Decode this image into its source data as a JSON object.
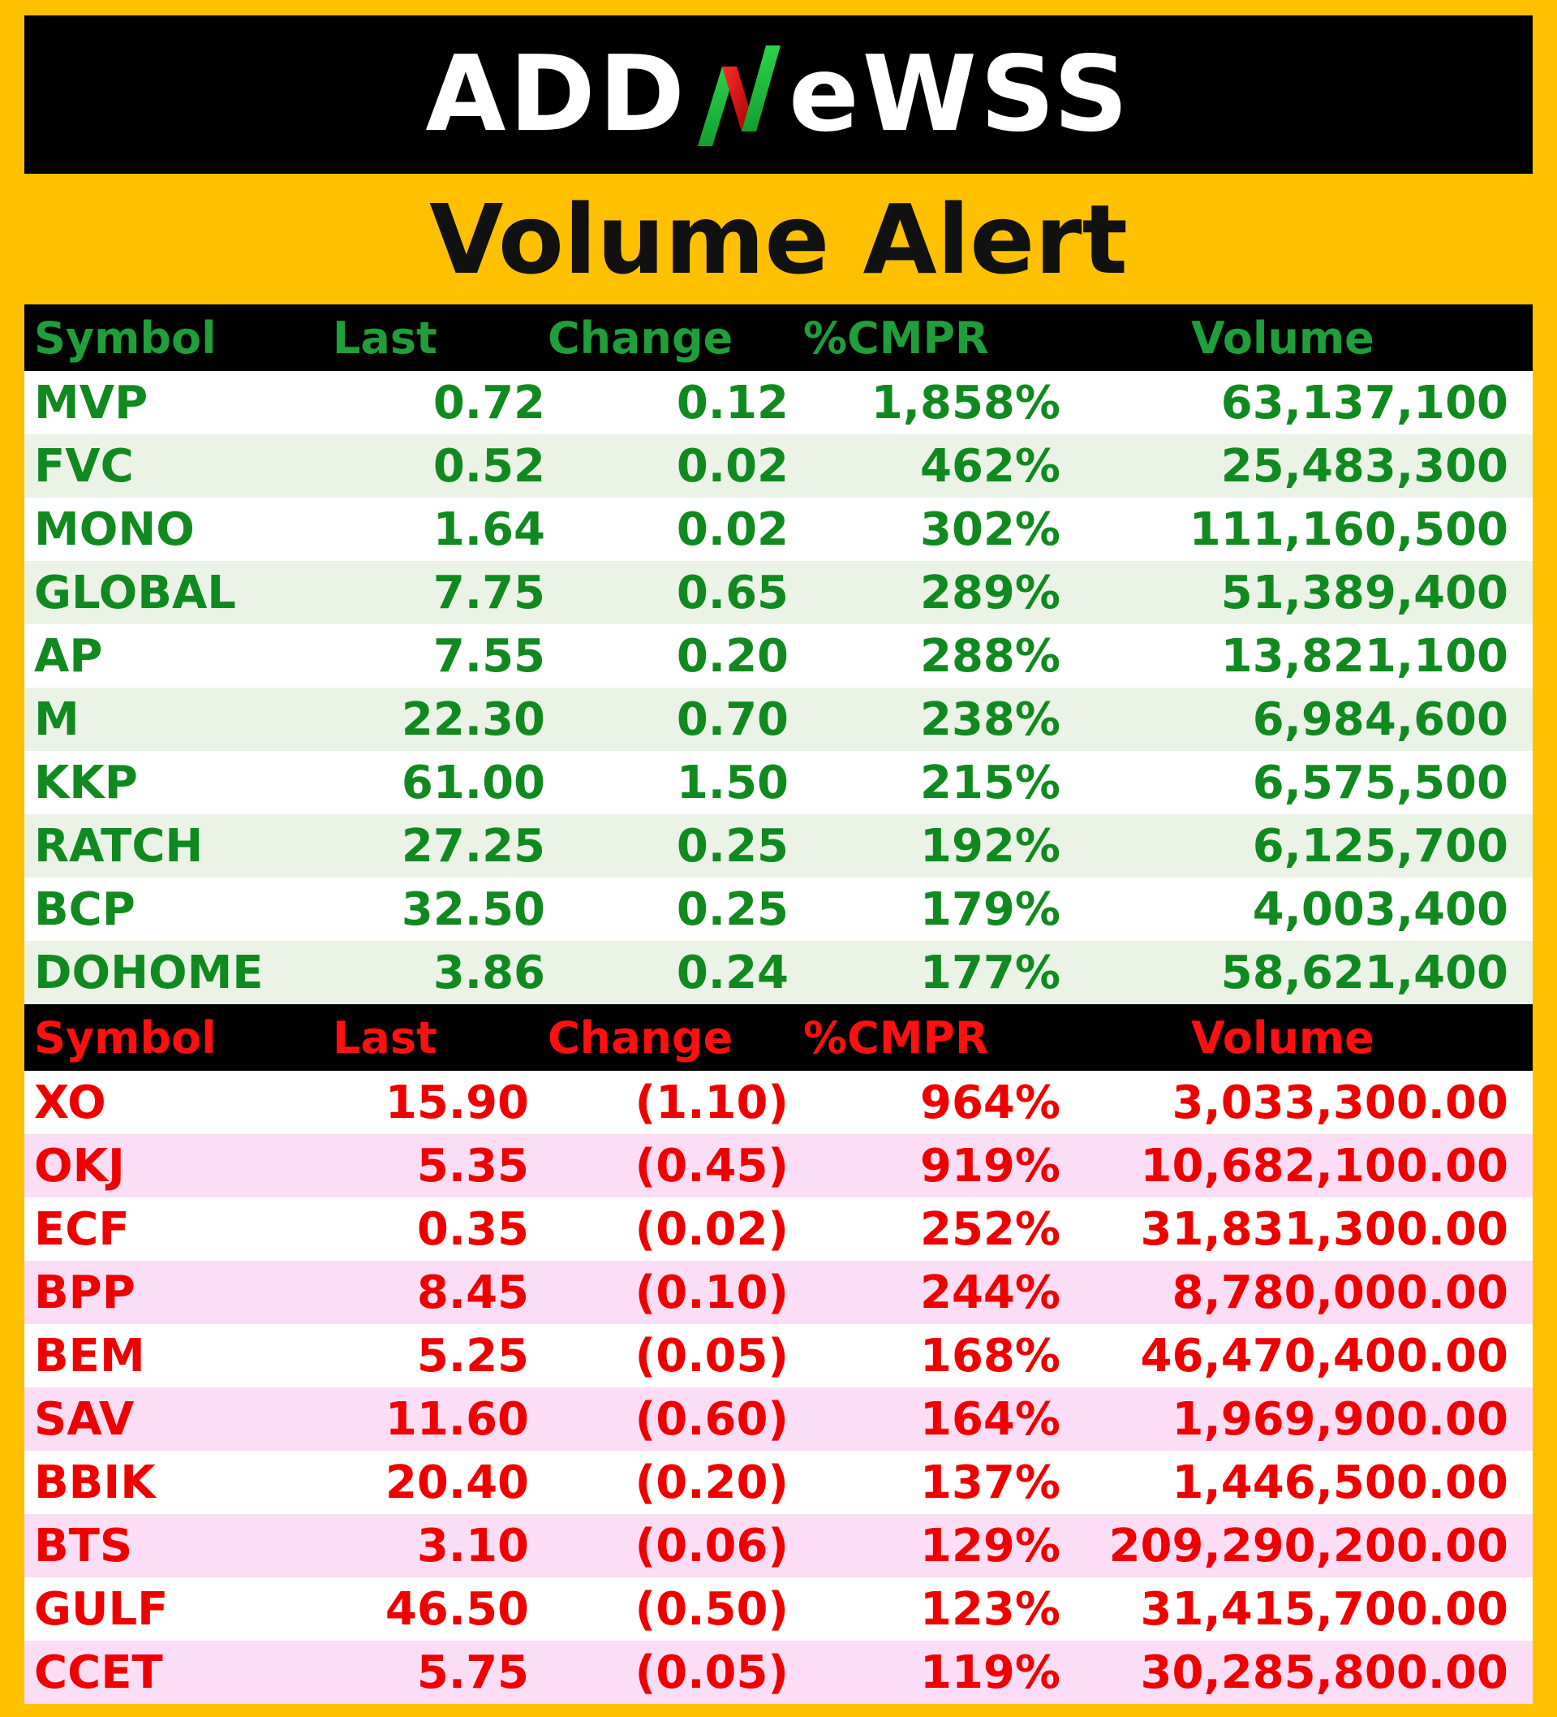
{
  "logo": {
    "prefix": "ADD",
    "n_letter": "N",
    "suffix": "eWSS",
    "text": "ADDNeWSS"
  },
  "title": "Volume Alert",
  "colors": {
    "background": "#FFC000",
    "header_bg": "#000000",
    "gain": "#108a1e",
    "loss": "#ee0000"
  },
  "gainers": {
    "headers": {
      "symbol": "Symbol",
      "last": "Last",
      "change": "Change",
      "cmpr": "%CMPR",
      "volume": "Volume"
    },
    "rows": [
      {
        "symbol": "MVP",
        "last": "0.72",
        "change": "0.12",
        "cmpr": "1,858%",
        "volume": "63,137,100"
      },
      {
        "symbol": "FVC",
        "last": "0.52",
        "change": "0.02",
        "cmpr": "462%",
        "volume": "25,483,300"
      },
      {
        "symbol": "MONO",
        "last": "1.64",
        "change": "0.02",
        "cmpr": "302%",
        "volume": "111,160,500"
      },
      {
        "symbol": "GLOBAL",
        "last": "7.75",
        "change": "0.65",
        "cmpr": "289%",
        "volume": "51,389,400"
      },
      {
        "symbol": "AP",
        "last": "7.55",
        "change": "0.20",
        "cmpr": "288%",
        "volume": "13,821,100"
      },
      {
        "symbol": "M",
        "last": "22.30",
        "change": "0.70",
        "cmpr": "238%",
        "volume": "6,984,600"
      },
      {
        "symbol": "KKP",
        "last": "61.00",
        "change": "1.50",
        "cmpr": "215%",
        "volume": "6,575,500"
      },
      {
        "symbol": "RATCH",
        "last": "27.25",
        "change": "0.25",
        "cmpr": "192%",
        "volume": "6,125,700"
      },
      {
        "symbol": "BCP",
        "last": "32.50",
        "change": "0.25",
        "cmpr": "179%",
        "volume": "4,003,400"
      },
      {
        "symbol": "DOHOME",
        "last": "3.86",
        "change": "0.24",
        "cmpr": "177%",
        "volume": "58,621,400"
      }
    ]
  },
  "losers": {
    "headers": {
      "symbol": "Symbol",
      "last": "Last",
      "change": "Change",
      "cmpr": "%CMPR",
      "volume": "Volume"
    },
    "rows": [
      {
        "symbol": "XO",
        "last": "15.90",
        "change": "(1.10)",
        "cmpr": "964%",
        "volume": "3,033,300.00"
      },
      {
        "symbol": "OKJ",
        "last": "5.35",
        "change": "(0.45)",
        "cmpr": "919%",
        "volume": "10,682,100.00"
      },
      {
        "symbol": "ECF",
        "last": "0.35",
        "change": "(0.02)",
        "cmpr": "252%",
        "volume": "31,831,300.00"
      },
      {
        "symbol": "BPP",
        "last": "8.45",
        "change": "(0.10)",
        "cmpr": "244%",
        "volume": "8,780,000.00"
      },
      {
        "symbol": "BEM",
        "last": "5.25",
        "change": "(0.05)",
        "cmpr": "168%",
        "volume": "46,470,400.00"
      },
      {
        "symbol": "SAV",
        "last": "11.60",
        "change": "(0.60)",
        "cmpr": "164%",
        "volume": "1,969,900.00"
      },
      {
        "symbol": "BBIK",
        "last": "20.40",
        "change": "(0.20)",
        "cmpr": "137%",
        "volume": "1,446,500.00"
      },
      {
        "symbol": "BTS",
        "last": "3.10",
        "change": "(0.06)",
        "cmpr": "129%",
        "volume": "209,290,200.00"
      },
      {
        "symbol": "GULF",
        "last": "46.50",
        "change": "(0.50)",
        "cmpr": "123%",
        "volume": "31,415,700.00"
      },
      {
        "symbol": "CCET",
        "last": "5.75",
        "change": "(0.05)",
        "cmpr": "119%",
        "volume": "30,285,800.00"
      }
    ]
  }
}
